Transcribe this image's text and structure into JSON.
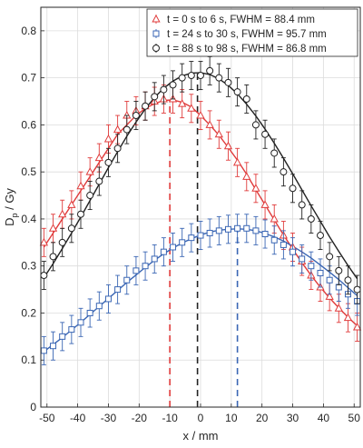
{
  "chart_data": {
    "type": "scatter",
    "xlabel": "x / mm",
    "ylabel_main": "D",
    "ylabel_sub": "p",
    "ylabel_rest": " / Gy",
    "xlim": [
      -52,
      52
    ],
    "ylim": [
      0,
      0.85
    ],
    "grid": true,
    "legend_position": "top-right",
    "xticks": [
      -50,
      -40,
      -30,
      -20,
      -10,
      0,
      10,
      20,
      30,
      40,
      50
    ],
    "yticks": [
      0,
      0.1,
      0.2,
      0.3,
      0.4,
      0.5,
      0.6,
      0.7,
      0.8
    ],
    "x": [
      -51,
      -48,
      -45,
      -42,
      -39,
      -36,
      -33,
      -30,
      -27,
      -24,
      -21,
      -18,
      -15,
      -12,
      -9,
      -6,
      -3,
      0,
      3,
      6,
      9,
      12,
      15,
      18,
      21,
      24,
      27,
      30,
      33,
      36,
      39,
      42,
      45,
      48,
      51
    ],
    "series": [
      {
        "name": "t = 0 s to 6 s,     FWHM = 88.4 mm",
        "marker": "triangle",
        "color": "#e03b3b",
        "values": [
          0.35,
          0.38,
          0.41,
          0.43,
          0.47,
          0.5,
          0.53,
          0.57,
          0.59,
          0.62,
          0.63,
          0.64,
          0.65,
          0.655,
          0.655,
          0.645,
          0.635,
          0.62,
          0.6,
          0.58,
          0.555,
          0.52,
          0.49,
          0.465,
          0.43,
          0.4,
          0.365,
          0.34,
          0.31,
          0.28,
          0.255,
          0.235,
          0.21,
          0.19,
          0.17
        ],
        "fit": [
          0.34,
          0.37,
          0.4,
          0.43,
          0.46,
          0.49,
          0.52,
          0.55,
          0.58,
          0.6,
          0.62,
          0.635,
          0.645,
          0.652,
          0.653,
          0.648,
          0.638,
          0.62,
          0.6,
          0.578,
          0.552,
          0.525,
          0.495,
          0.462,
          0.43,
          0.398,
          0.366,
          0.336,
          0.307,
          0.28,
          0.255,
          0.232,
          0.211,
          0.191,
          0.173
        ],
        "peak_x": -10,
        "error": 0.03
      },
      {
        "name": "t = 24 s to 30 s, FWHM = 95.7 mm",
        "marker": "square",
        "color": "#3a66b4",
        "values": [
          0.12,
          0.13,
          0.15,
          0.165,
          0.18,
          0.2,
          0.215,
          0.23,
          0.25,
          0.27,
          0.29,
          0.3,
          0.315,
          0.33,
          0.34,
          0.35,
          0.36,
          0.365,
          0.37,
          0.375,
          0.378,
          0.38,
          0.38,
          0.375,
          0.368,
          0.355,
          0.345,
          0.33,
          0.315,
          0.3,
          0.285,
          0.27,
          0.255,
          0.24,
          0.225
        ],
        "fit": [
          0.118,
          0.133,
          0.148,
          0.164,
          0.18,
          0.197,
          0.214,
          0.231,
          0.248,
          0.265,
          0.281,
          0.297,
          0.312,
          0.326,
          0.338,
          0.349,
          0.358,
          0.366,
          0.372,
          0.376,
          0.378,
          0.379,
          0.378,
          0.375,
          0.369,
          0.362,
          0.353,
          0.342,
          0.33,
          0.317,
          0.302,
          0.287,
          0.271,
          0.254,
          0.237
        ],
        "peak_x": 12,
        "error": 0.03
      },
      {
        "name": "t = 88 s to 98 s, FWHM = 86.8 mm",
        "marker": "circle",
        "color": "#222222",
        "values": [
          0.28,
          0.32,
          0.35,
          0.38,
          0.41,
          0.45,
          0.48,
          0.52,
          0.55,
          0.59,
          0.62,
          0.64,
          0.66,
          0.675,
          0.685,
          0.7,
          0.705,
          0.705,
          0.715,
          0.7,
          0.69,
          0.67,
          0.655,
          0.6,
          0.58,
          0.54,
          0.5,
          0.465,
          0.43,
          0.4,
          0.365,
          0.32,
          0.29,
          0.27,
          0.25
        ],
        "fit": [
          0.275,
          0.305,
          0.337,
          0.37,
          0.404,
          0.439,
          0.474,
          0.509,
          0.543,
          0.576,
          0.606,
          0.634,
          0.658,
          0.678,
          0.693,
          0.704,
          0.71,
          0.711,
          0.707,
          0.698,
          0.684,
          0.666,
          0.644,
          0.619,
          0.591,
          0.561,
          0.529,
          0.496,
          0.462,
          0.428,
          0.395,
          0.362,
          0.331,
          0.301,
          0.273
        ],
        "peak_x": -1,
        "error": 0.03
      }
    ]
  }
}
